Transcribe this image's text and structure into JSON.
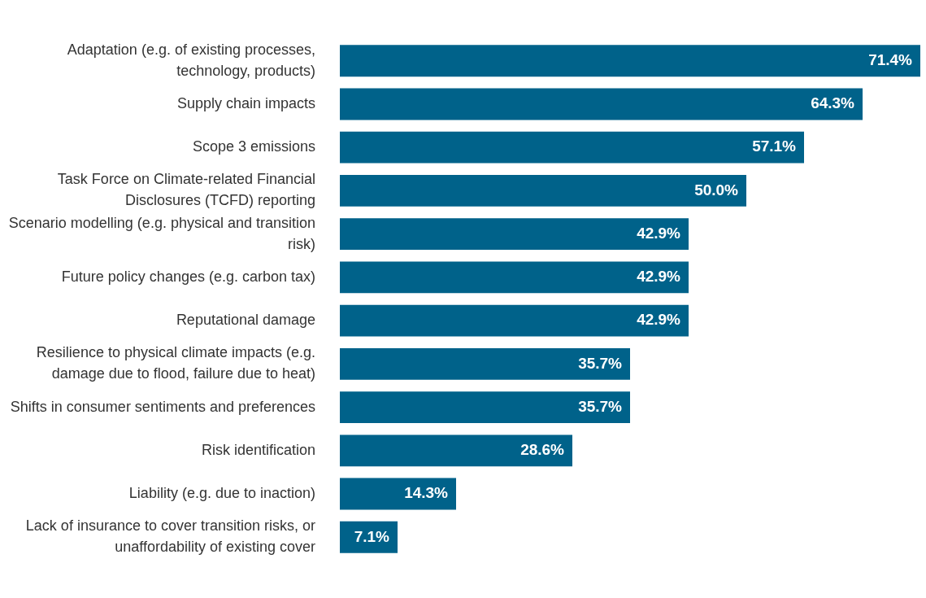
{
  "chart_data": {
    "type": "bar",
    "orientation": "horizontal",
    "categories": [
      "Adaptation (e.g. of existing processes, technology, products)",
      "Supply chain impacts",
      "Scope 3 emissions",
      "Task Force on Climate-related Financial Disclosures (TCFD) reporting",
      "Scenario modelling (e.g. physical and transition risk)",
      "Future policy changes (e.g. carbon tax)",
      "Reputational damage",
      "Resilience to physical climate impacts (e.g. damage due to flood, failure due to heat)",
      "Shifts in consumer sentiments and preferences",
      "Risk identification",
      "Liability (e.g. due to inaction)",
      "Lack of insurance to cover transition risks, or unaffordability of existing cover"
    ],
    "values": [
      71.4,
      64.3,
      57.1,
      50.0,
      42.9,
      42.9,
      42.9,
      35.7,
      35.7,
      28.6,
      14.3,
      7.1
    ],
    "value_labels": [
      "71.4%",
      "64.3%",
      "57.1%",
      "50.0%",
      "42.9%",
      "42.9%",
      "42.9%",
      "35.7%",
      "35.7%",
      "28.6%",
      "14.3%",
      "7.1%"
    ],
    "color": "#00628a"
  }
}
